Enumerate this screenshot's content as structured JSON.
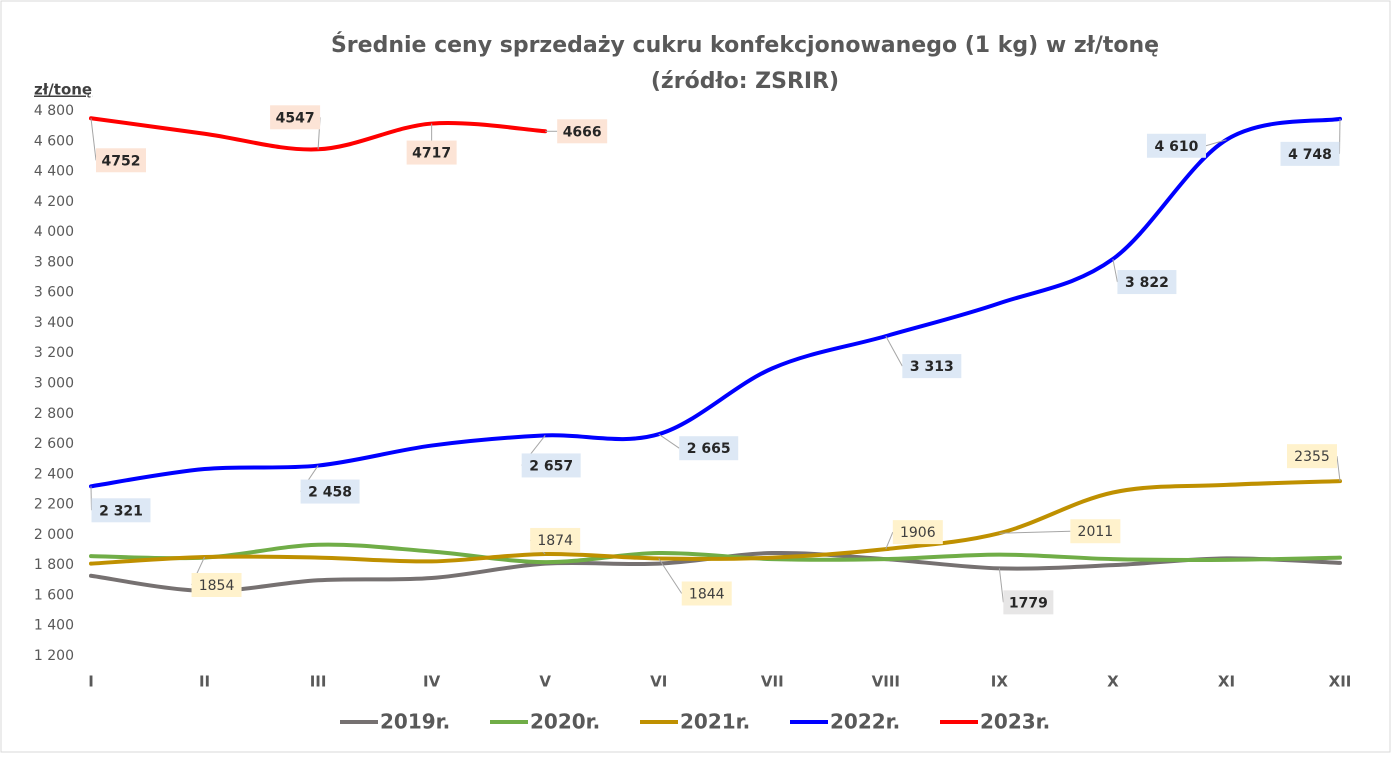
{
  "chart_data": {
    "type": "line",
    "title": "Średnie ceny sprzedaży cukru konfekcjonowanego (1 kg) w zł/tonę",
    "subtitle": "(źródło: ZSRIR)",
    "y_label": "zł/tonę",
    "categories": [
      "I",
      "II",
      "III",
      "IV",
      "V",
      "VI",
      "VII",
      "VIII",
      "IX",
      "X",
      "XI",
      "XII"
    ],
    "ylim": [
      1200,
      4800
    ],
    "yticks": [
      {
        "value": 1200,
        "label": "1 200"
      },
      {
        "value": 1400,
        "label": "1 400"
      },
      {
        "value": 1600,
        "label": "1 600"
      },
      {
        "value": 1800,
        "label": "1 800"
      },
      {
        "value": 2000,
        "label": "2 000"
      },
      {
        "value": 2200,
        "label": "2 200"
      },
      {
        "value": 2400,
        "label": "2 400"
      },
      {
        "value": 2600,
        "label": "2 600"
      },
      {
        "value": 2800,
        "label": "2 800"
      },
      {
        "value": 3000,
        "label": "3 000"
      },
      {
        "value": 3200,
        "label": "3 200"
      },
      {
        "value": 3400,
        "label": "3 400"
      },
      {
        "value": 3600,
        "label": "3 600"
      },
      {
        "value": 3800,
        "label": "3 800"
      },
      {
        "value": 4000,
        "label": "4 000"
      },
      {
        "value": 4200,
        "label": "4 200"
      },
      {
        "value": 4400,
        "label": "4 400"
      },
      {
        "value": 4600,
        "label": "4 600"
      },
      {
        "value": 4800,
        "label": "4 800"
      }
    ],
    "grid": false,
    "legend": "bottom",
    "series": [
      {
        "name": "2019r.",
        "color": "#767171",
        "values": [
          1730,
          1630,
          1700,
          1715,
          1810,
          1810,
          1880,
          1840,
          1779,
          1800,
          1845,
          1815
        ],
        "value_labels": [
          null,
          null,
          null,
          null,
          null,
          null,
          null,
          null,
          "1779",
          null,
          null,
          null
        ]
      },
      {
        "name": "2020r.",
        "color": "#70ad47",
        "values": [
          1860,
          1850,
          1935,
          1890,
          1820,
          1880,
          1840,
          1840,
          1870,
          1840,
          1835,
          1850
        ]
      },
      {
        "name": "2021r.",
        "color": "#bf9000",
        "values": [
          1810,
          1854,
          1850,
          1825,
          1874,
          1844,
          1850,
          1906,
          2011,
          2280,
          2330,
          2355
        ],
        "value_labels": [
          null,
          "1854",
          null,
          null,
          "1874",
          "1844",
          null,
          "1906",
          "2011",
          null,
          null,
          "2355"
        ]
      },
      {
        "name": "2022r.",
        "color": "#0000ff",
        "values": [
          2321,
          2435,
          2458,
          2590,
          2657,
          2665,
          3100,
          3313,
          3530,
          3822,
          4610,
          4748
        ],
        "value_labels": [
          "2 321",
          null,
          "2 458",
          null,
          "2 657",
          "2 665",
          null,
          "3 313",
          null,
          "3 822",
          "4 610",
          "4 748"
        ]
      },
      {
        "name": "2023r.",
        "color": "#ff0000",
        "values": [
          4752,
          4650,
          4547,
          4717,
          4666,
          null,
          null,
          null,
          null,
          null,
          null,
          null
        ],
        "value_labels": [
          "4752",
          null,
          "4547",
          "4717",
          "4666",
          null,
          null,
          null,
          null,
          null,
          null,
          null
        ]
      }
    ]
  }
}
